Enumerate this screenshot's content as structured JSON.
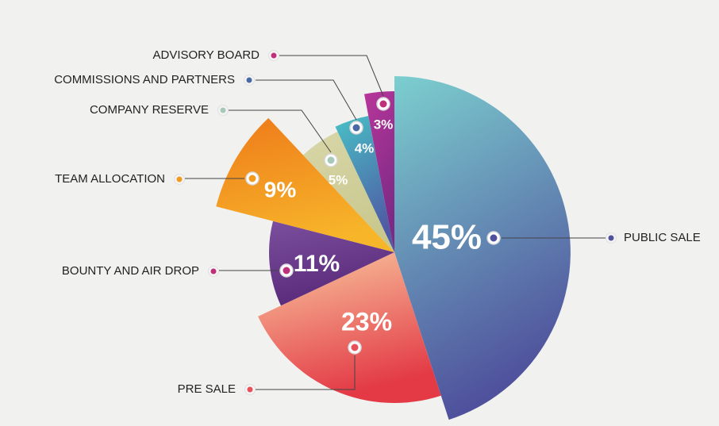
{
  "chart_data": {
    "type": "pie",
    "title": "",
    "categories": [
      "PUBLIC SALE",
      "PRE SALE",
      "BOUNTY AND AIR DROP",
      "TEAM ALLOCATION",
      "COMPANY RESERVE",
      "COMMISSIONS AND PARTNERS",
      "ADVISORY BOARD"
    ],
    "values": [
      45,
      23,
      11,
      9,
      5,
      4,
      3
    ],
    "value_labels": [
      "45%",
      "23%",
      "11%",
      "9%",
      "5%",
      "4%",
      "3%"
    ],
    "unit": "%",
    "legend_position": "callouts around pie",
    "colors": {
      "PUBLIC SALE": [
        "#7ccfcf",
        "#4f519c"
      ],
      "PRE SALE": [
        "#f9c9a0",
        "#e33a46"
      ],
      "BOUNTY AND AIR DROP": [
        "#7b4e9e",
        "#5a2a7a"
      ],
      "TEAM ALLOCATION": [
        "#ee7a1a",
        "#f7b52a"
      ],
      "COMPANY RESERVE": [
        "#d8d6a8",
        "#c8c88e"
      ],
      "COMMISSIONS AND PARTNERS": [
        "#48c1c6",
        "#4f59a4"
      ],
      "ADVISORY BOARD": [
        "#b8369a",
        "#7b2a85"
      ]
    },
    "marker_colors": {
      "PUBLIC SALE": "#4f519c",
      "PRE SALE": "#e8505a",
      "BOUNTY AND AIR DROP": "#c0307a",
      "TEAM ALLOCATION": "#f29a20",
      "COMPANY RESERVE": "#a8c8b8",
      "COMMISSIONS AND PARTNERS": "#4a6aa4",
      "ADVISORY BOARD": "#c0307a"
    }
  }
}
